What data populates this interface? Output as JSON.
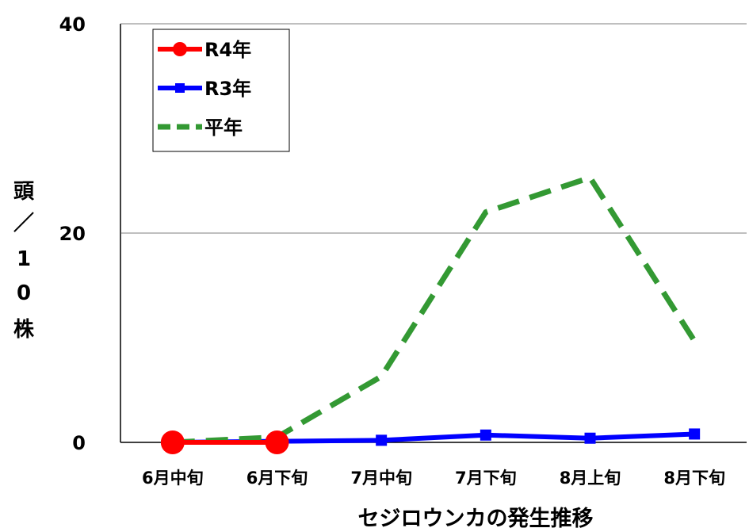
{
  "chart_data": {
    "type": "line",
    "title": "",
    "xlabel": "セジロウンカの発生推移",
    "ylabel": "頭／10株",
    "ylabel_chars": [
      "頭",
      "／",
      "1",
      "0",
      "株"
    ],
    "categories": [
      "6月中旬",
      "6月下旬",
      "7月中旬",
      "7月下旬",
      "8月上旬",
      "8月下旬"
    ],
    "yticks": [
      "0",
      "20",
      "40"
    ],
    "ylim": [
      0,
      40
    ],
    "grid": true,
    "legend_position": "top-left",
    "series": [
      {
        "name": "R4年",
        "values": [
          0,
          0,
          null,
          null,
          null,
          null
        ],
        "color": "#ff0000",
        "marker": "circle",
        "line": "solid"
      },
      {
        "name": "R3年",
        "values": [
          0,
          0.1,
          0.2,
          0.7,
          0.4,
          0.8
        ],
        "color": "#0000ff",
        "marker": "square",
        "line": "solid"
      },
      {
        "name": "平年",
        "values": [
          0,
          0.5,
          6.3,
          22.0,
          25.3,
          9.7
        ],
        "color": "#339933",
        "marker": "none",
        "line": "dashed"
      }
    ]
  }
}
